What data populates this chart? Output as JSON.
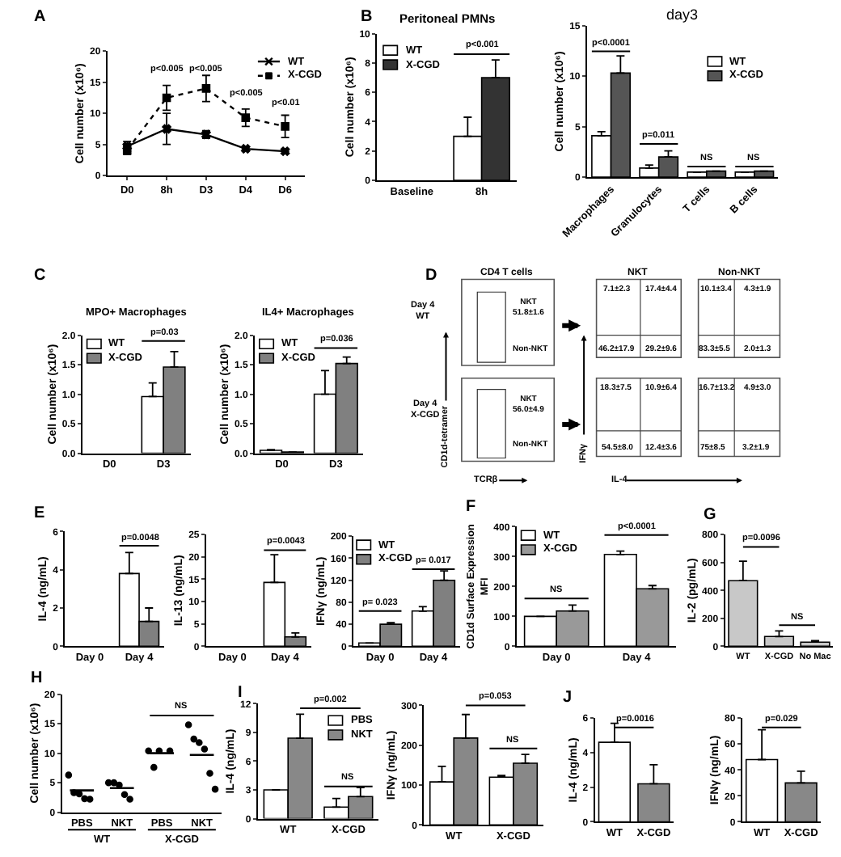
{
  "chart_data": [
    {
      "type": "line",
      "ylabel": "Cell number (x10⁶)",
      "categories": [
        "D0",
        "8h",
        "D3",
        "D4",
        "D6"
      ],
      "ylim": [
        0,
        20
      ],
      "yticks": [
        0,
        5,
        10,
        15,
        20
      ],
      "legend": "top right",
      "annotations": [
        "A",
        "p<0.005",
        "p<0.005",
        "p<0.005",
        "p<0.01"
      ],
      "series": [
        {
          "name": "WT",
          "color": "#000000",
          "marker": "cross",
          "line_style": "solid",
          "values": [
            4.7,
            7.5,
            6.6,
            4.3,
            3.9
          ],
          "errors": [
            0.8,
            2.5,
            0.6,
            null,
            null
          ]
        },
        {
          "name": "X-CGD",
          "color": "#000000",
          "marker": "square",
          "line_style": "dotted",
          "values": [
            4.1,
            12.5,
            14.0,
            9.3,
            7.9
          ],
          "errors": [
            0.7,
            2.0,
            2.1,
            1.4,
            1.8
          ]
        }
      ]
    },
    {
      "type": "bar",
      "title": "Peritoneal PMNs",
      "ylabel": "Cell number (x10⁶)",
      "categories": [
        "Baseline",
        "8h"
      ],
      "ylim": [
        0,
        10
      ],
      "yticks": [
        0,
        2,
        4,
        6,
        8,
        10
      ],
      "legend": "top left",
      "annotations": [
        "B",
        "p<0.001"
      ],
      "series": [
        {
          "name": "WT",
          "color": "#ffffff",
          "values": [
            null,
            3.0
          ],
          "errors": [
            null,
            [
              3.0,
              4.3
            ]
          ]
        },
        {
          "name": "X-CGD",
          "color": "#333333",
          "values": [
            null,
            7.0
          ],
          "errors": [
            null,
            [
              7.0,
              8.2
            ]
          ]
        }
      ]
    },
    {
      "type": "bar",
      "title": "day3",
      "ylabel": "Cell number (x10⁶)",
      "categories": [
        "Macrophages",
        "Granulocytes",
        "T cells",
        "B cells"
      ],
      "ylim": [
        0,
        15
      ],
      "yticks": [
        0,
        5,
        10,
        15
      ],
      "legend": "top right",
      "annotations": [
        "p<0.0001",
        "p=0.011",
        "NS",
        "NS"
      ],
      "series": [
        {
          "name": "WT",
          "color": "#ffffff",
          "values": [
            4.1,
            0.9,
            0.5,
            0.5
          ],
          "errors": [
            [
              4.1,
              4.5
            ],
            [
              0.9,
              1.2
            ],
            null,
            null
          ]
        },
        {
          "name": "X-CGD",
          "color": "#555555",
          "values": [
            10.3,
            2.0,
            0.6,
            0.6
          ],
          "errors": [
            [
              10.3,
              12.0
            ],
            [
              2.0,
              2.6
            ],
            null,
            null
          ]
        }
      ]
    },
    {
      "type": "bar",
      "title": "MPO+ Macrophages",
      "ylabel": "Cell number (x10⁶)",
      "categories": [
        "D0",
        "D3"
      ],
      "ylim": [
        0,
        2
      ],
      "yticks": [
        {
          "value": 0,
          "label": "0.0"
        },
        0.5,
        {
          "value": 1,
          "label": "1.0"
        },
        1.5,
        {
          "value": 2,
          "label": "2.0"
        }
      ],
      "legend": "top left",
      "annotations": [
        "C",
        "p=0.03"
      ],
      "series": [
        {
          "name": "WT",
          "color": "#ffffff",
          "values": [
            null,
            0.96
          ],
          "errors": [
            null,
            [
              0.96,
              1.19
            ]
          ]
        },
        {
          "name": "X-CGD",
          "color": "#808080",
          "values": [
            null,
            1.46
          ],
          "errors": [
            null,
            [
              1.46,
              1.72
            ]
          ]
        }
      ]
    },
    {
      "type": "bar",
      "title": "IL4+ Macrophages",
      "ylabel": "Cell number (x10⁶)",
      "categories": [
        "D0",
        "D3"
      ],
      "ylim": [
        0,
        2
      ],
      "yticks": [
        {
          "value": 0,
          "label": "0.0"
        },
        0.5,
        {
          "value": 1,
          "label": "1.0"
        },
        1.5,
        {
          "value": 2,
          "label": "2.0"
        }
      ],
      "legend": "top left",
      "annotations": [
        "p=0.036"
      ],
      "series": [
        {
          "name": "WT",
          "color": "#ffffff",
          "values": [
            0.05,
            1.0
          ],
          "errors": [
            [
              0.05,
              0.06
            ],
            [
              1.0,
              1.4
            ]
          ]
        },
        {
          "name": "X-CGD",
          "color": "#808080",
          "values": [
            0.02,
            1.52
          ],
          "errors": [
            null,
            [
              1.52,
              1.63
            ]
          ]
        }
      ]
    },
    {
      "type": "other",
      "annotations": [
        "D",
        "CD4 T cells",
        "NKT",
        "Non-NKT",
        "Day 4\nWT",
        "Day 4\nX-CGD",
        "NKT\n51.8±1.6",
        "Non-NKT",
        "NKT\n56.0±4.9",
        "Non-NKT",
        "7.1±2.3",
        "17.4±4.4",
        "46.2±17.9",
        "29.2±9.6",
        "10.1±3.4",
        "4.3±1.9",
        "83.3±5.5",
        "2.0±1.3",
        "18.3±7.5",
        "10.9±6.4",
        "54.5±8.0",
        "12.4±3.6",
        "16.7±13.2",
        "4.9±3.0",
        "75±8.5",
        "3.2±1.9",
        "CD1d-tetramer",
        "TCRβ",
        "IFNγ",
        "IL-4"
      ]
    },
    {
      "type": "bar",
      "ylabel": "IL-4 (ng/mL)",
      "categories": [
        "Day 0",
        "Day 4"
      ],
      "ylim": [
        0,
        6
      ],
      "yticks": [
        0,
        2,
        4,
        6
      ],
      "annotations": [
        "E",
        "p=0.0048"
      ],
      "series": [
        {
          "color": "#ffffff",
          "values": [
            null,
            3.8
          ],
          "errors": [
            null,
            [
              3.8,
              4.9
            ]
          ]
        },
        {
          "color": "#808080",
          "values": [
            null,
            1.3
          ],
          "errors": [
            null,
            [
              1.3,
              2.0
            ]
          ]
        }
      ]
    },
    {
      "type": "bar",
      "ylabel": "IL-13 (ng/mL)",
      "categories": [
        "Day 0",
        "Day 4"
      ],
      "ylim": [
        0,
        25
      ],
      "yticks": [
        0,
        5,
        10,
        15,
        20,
        25
      ],
      "annotations": [
        "p=0.0043"
      ],
      "series": [
        {
          "color": "#ffffff",
          "values": [
            null,
            14.3
          ],
          "errors": [
            null,
            [
              14.3,
              20.5
            ]
          ]
        },
        {
          "color": "#808080",
          "values": [
            null,
            2.1
          ],
          "errors": [
            null,
            [
              2.1,
              3.0
            ]
          ]
        }
      ]
    },
    {
      "type": "bar",
      "ylabel": "IFNγ (ng/mL)",
      "categories": [
        "Day 0",
        "Day 4"
      ],
      "ylim": [
        0,
        200
      ],
      "yticks": [
        0,
        40,
        80,
        120,
        160,
        200
      ],
      "legend": "top left",
      "annotations": [
        "p= 0.023",
        "p= 0.017"
      ],
      "series": [
        {
          "name": "WT",
          "color": "#ffffff",
          "values": [
            6,
            64
          ],
          "errors": [
            null,
            [
              64,
              72
            ]
          ]
        },
        {
          "name": "X-CGD",
          "color": "#808080",
          "values": [
            40,
            120
          ],
          "errors": [
            [
              40,
              43
            ],
            [
              120,
              137
            ]
          ]
        }
      ]
    },
    {
      "type": "bar",
      "ylabel": "CD1d Surface Expression\nMFI",
      "categories": [
        "Day 0",
        "Day 4"
      ],
      "ylim": [
        0,
        400
      ],
      "yticks": [
        0,
        100,
        200,
        300,
        400
      ],
      "legend": "top left",
      "annotations": [
        "F",
        "NS",
        "p<0.0001"
      ],
      "series": [
        {
          "name": "WT",
          "color": "#ffffff",
          "values": [
            100,
            307
          ],
          "errors": [
            null,
            [
              307,
              318
            ]
          ]
        },
        {
          "name": "X-CGD",
          "color": "#999999",
          "values": [
            118,
            192
          ],
          "errors": [
            [
              118,
              138
            ],
            [
              192,
              203
            ]
          ]
        }
      ]
    },
    {
      "type": "bar",
      "ylabel": "IL-2 (pg/mL)",
      "categories": [
        "WT",
        "X-CGD",
        "No Mac"
      ],
      "ylim": [
        0,
        800
      ],
      "yticks": [
        0,
        200,
        400,
        600,
        800
      ],
      "annotations": [
        "G",
        "p=0.0096",
        "NS"
      ],
      "color": "#c8c8c8",
      "values": [
        470,
        70,
        30
      ],
      "errors": [
        [
          470,
          610
        ],
        [
          70,
          110
        ],
        [
          30,
          40
        ]
      ]
    },
    {
      "type": "scatter",
      "ylabel": "Cell number (x10⁶)",
      "categories": [
        "PBS",
        "NKT",
        "PBS",
        "NKT"
      ],
      "ylim": [
        0,
        20
      ],
      "yticks": [
        0,
        5,
        10,
        15,
        20
      ],
      "marker": "circle",
      "annotations": [
        "H",
        "NS",
        "WT",
        "X-CGD"
      ],
      "series": [
        {
          "color": "#000000",
          "values": [
            6.3,
            5.0,
            10.4,
            14.8
          ]
        },
        {
          "color": "#000000",
          "values": [
            3.3,
            5.0,
            7.6,
            12.4
          ]
        },
        {
          "color": "#000000",
          "values": [
            3.1,
            4.6,
            10.4,
            11.8
          ]
        },
        {
          "color": "#000000",
          "values": [
            2.3,
            3.0,
            null,
            10.7
          ]
        },
        {
          "color": "#000000",
          "values": [
            2.2,
            2.2,
            10.4,
            6.6
          ]
        },
        {
          "color": "#000000",
          "values": [
            null,
            null,
            null,
            3.9
          ]
        },
        {
          "type": "box",
          "color": "#000000",
          "boxes": [
            {
              "low": 3.7,
              "q1": 3.7,
              "median": 3.7,
              "q3": 3.7,
              "high": 3.7
            },
            {
              "low": 4.1,
              "q1": 4.1,
              "median": 4.1,
              "q3": 4.1,
              "high": 4.1
            },
            {
              "low": 10.0,
              "q1": 10.0,
              "median": 10.0,
              "q3": 10.0,
              "high": 10.0
            },
            {
              "low": 9.7,
              "q1": 9.7,
              "median": 9.7,
              "q3": 9.7,
              "high": 9.7
            }
          ]
        }
      ]
    },
    {
      "type": "bar",
      "ylabel": "IL-4 (ng/mL)",
      "categories": [
        "WT",
        "X-CGD"
      ],
      "ylim": [
        0,
        12
      ],
      "yticks": [
        0,
        3,
        6,
        9,
        12
      ],
      "legend": "top right",
      "annotations": [
        "I",
        "p=0.002",
        "NS"
      ],
      "series": [
        {
          "name": "PBS",
          "color": "#ffffff",
          "values": [
            3.0,
            1.2
          ],
          "errors": [
            null,
            [
              1.2,
              2.1
            ]
          ]
        },
        {
          "name": "NKT",
          "color": "#888888",
          "values": [
            8.4,
            2.3
          ],
          "errors": [
            [
              8.4,
              10.9
            ],
            [
              2.3,
              3.25
            ]
          ]
        }
      ]
    },
    {
      "type": "bar",
      "ylabel": "IFNγ (ng/mL)",
      "categories": [
        "WT",
        "X-CGD"
      ],
      "ylim": [
        0,
        300
      ],
      "yticks": [
        0,
        100,
        200,
        300
      ],
      "annotations": [
        "p=0.053",
        "NS"
      ],
      "series": [
        {
          "color": "#ffffff",
          "values": [
            108,
            120
          ],
          "errors": [
            [
              108,
              147
            ],
            [
              120,
              124
            ]
          ]
        },
        {
          "color": "#888888",
          "values": [
            218,
            155
          ],
          "errors": [
            [
              218,
              277
            ],
            [
              155,
              177
            ]
          ]
        }
      ]
    },
    {
      "type": "bar",
      "ylabel": "IL-4 (ng/mL)",
      "categories": [
        "WT",
        "X-CGD"
      ],
      "ylim": [
        0,
        6
      ],
      "yticks": [
        0,
        2,
        4,
        6
      ],
      "annotations": [
        "J",
        "p=0.0016"
      ],
      "colors": [
        "#ffffff",
        "#888888"
      ],
      "values": [
        4.6,
        2.2
      ],
      "errors": [
        [
          4.6,
          5.7
        ],
        [
          2.2,
          3.3
        ]
      ]
    },
    {
      "type": "bar",
      "ylabel": "IFNγ (ng/mL)",
      "categories": [
        "WT",
        "X-CGD"
      ],
      "ylim": [
        0,
        80
      ],
      "yticks": [
        0,
        20,
        40,
        60,
        80
      ],
      "annotations": [
        "p=0.029"
      ],
      "colors": [
        "#ffffff",
        "#888888"
      ],
      "values": [
        48,
        30
      ],
      "errors": [
        [
          48,
          71
        ],
        [
          30,
          39
        ]
      ]
    }
  ]
}
